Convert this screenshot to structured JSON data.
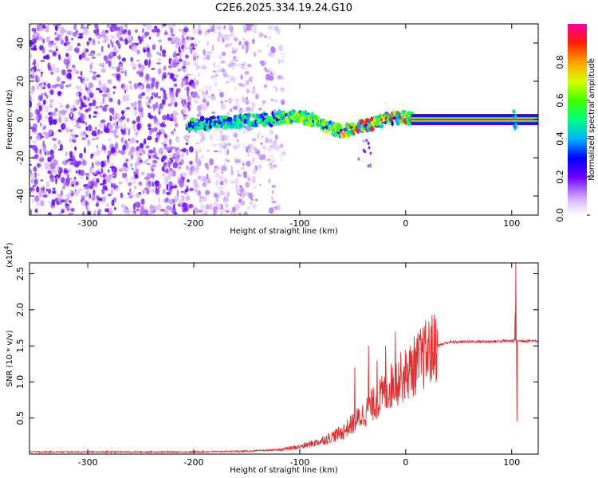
{
  "title": "C2E6.2025.334.19.24.G10",
  "chart_data": [
    {
      "type": "heatmap",
      "xlabel": "Height of straight line (km)",
      "ylabel": "Frequency (Hz)",
      "xlim": [
        -355,
        125
      ],
      "ylim": [
        -50,
        50
      ],
      "xticks": [
        -300,
        -200,
        -100,
        0,
        100
      ],
      "yticks": [
        -40,
        -20,
        0,
        20,
        40
      ],
      "colorbar": {
        "label": "Normalized spectral amplitude",
        "range": [
          0,
          1
        ],
        "ticks": [
          "0.0",
          "0.2",
          "0.4",
          "0.6",
          "0.8"
        ],
        "tick_values": [
          0.0,
          0.2,
          0.4,
          0.6,
          0.8
        ]
      },
      "ridge": [
        [
          -205,
          -3
        ],
        [
          -190,
          -2
        ],
        [
          -175,
          -1.5
        ],
        [
          -160,
          -1
        ],
        [
          -145,
          -0.5
        ],
        [
          -130,
          0
        ],
        [
          -115,
          1
        ],
        [
          -100,
          1.5
        ],
        [
          -90,
          0
        ],
        [
          -80,
          -2
        ],
        [
          -70,
          -5
        ],
        [
          -60,
          -6
        ],
        [
          -50,
          -5
        ],
        [
          -40,
          -3
        ],
        [
          -30,
          -2
        ],
        [
          -20,
          0
        ],
        [
          -10,
          1
        ],
        [
          0,
          1.5
        ],
        [
          5,
          0.5
        ],
        [
          20,
          0
        ],
        [
          60,
          0
        ],
        [
          100,
          0
        ],
        [
          125,
          0
        ]
      ]
    },
    {
      "type": "line",
      "xlabel": "Height of straight line (km)",
      "ylabel": "SNR (10 * v/v)",
      "y_multiplier": "(x10",
      "y_multiplier_exp": "4",
      "y_multiplier_close": ")",
      "xlim": [
        -355,
        125
      ],
      "ylim": [
        0,
        2.65
      ],
      "xticks": [
        -300,
        -200,
        -100,
        0,
        100
      ],
      "yticks": [
        0.5,
        1.0,
        1.5,
        2.0,
        2.5
      ],
      "series": [
        {
          "color": "#e03030",
          "envelope": [
            [
              -355,
              0.03
            ],
            [
              -300,
              0.03
            ],
            [
              -250,
              0.03
            ],
            [
              -200,
              0.03
            ],
            [
              -150,
              0.04
            ],
            [
              -120,
              0.06
            ],
            [
              -100,
              0.1
            ],
            [
              -80,
              0.18
            ],
            [
              -60,
              0.3
            ],
            [
              -40,
              0.55
            ],
            [
              -30,
              0.7
            ],
            [
              -20,
              0.85
            ],
            [
              -10,
              1.0
            ],
            [
              0,
              1.1
            ],
            [
              10,
              1.25
            ],
            [
              20,
              1.4
            ],
            [
              30,
              1.5
            ],
            [
              40,
              1.55
            ],
            [
              60,
              1.56
            ],
            [
              80,
              1.56
            ],
            [
              100,
              1.57
            ],
            [
              125,
              1.57
            ]
          ],
          "spikes": [
            [
              -48,
              1.2
            ],
            [
              -35,
              1.5
            ],
            [
              -27,
              1.3
            ],
            [
              -19,
              1.5
            ],
            [
              -10,
              1.7
            ],
            [
              -4,
              1.1
            ],
            [
              104,
              2.65
            ],
            [
              105,
              0.45
            ],
            [
              103,
              1.95
            ]
          ]
        }
      ]
    }
  ]
}
